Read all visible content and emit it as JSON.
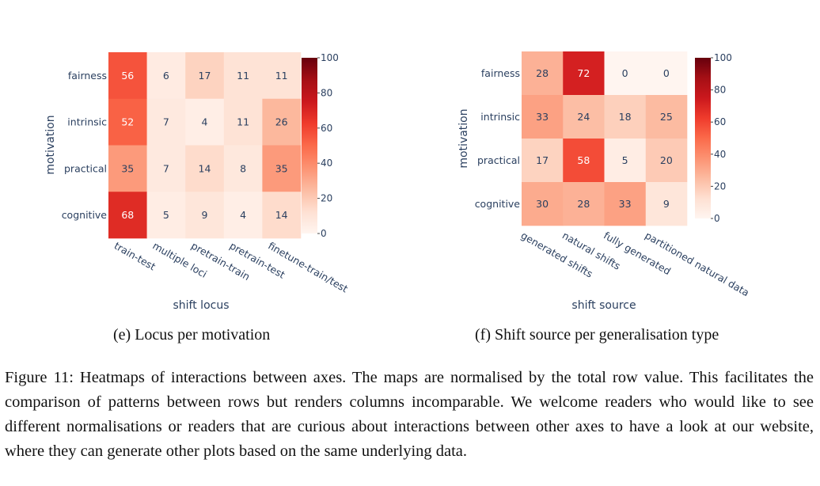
{
  "chart_data": [
    {
      "type": "heatmap",
      "title": "",
      "xlabel": "shift locus",
      "ylabel": "motivation",
      "x": [
        "train-test",
        "multiple loci",
        "pretrain-train",
        "pretrain-test",
        "finetune-train/test"
      ],
      "y": [
        "fairness",
        "intrinsic",
        "practical",
        "cognitive"
      ],
      "values": [
        [
          56,
          6,
          17,
          11,
          11
        ],
        [
          52,
          7,
          4,
          11,
          26
        ],
        [
          35,
          7,
          14,
          8,
          35
        ],
        [
          68,
          5,
          9,
          4,
          14
        ]
      ],
      "colorscale": "Reds",
      "zlim": [
        0,
        100
      ],
      "colorbar_ticks": [
        "0",
        "20",
        "40",
        "60",
        "80",
        "100"
      ]
    },
    {
      "type": "heatmap",
      "title": "",
      "xlabel": "shift source",
      "ylabel": "motivation",
      "x": [
        "generated shifts",
        "natural shifts",
        "fully generated",
        "partitioned natural data"
      ],
      "y": [
        "fairness",
        "intrinsic",
        "practical",
        "cognitive"
      ],
      "values": [
        [
          28,
          72,
          0,
          0
        ],
        [
          33,
          24,
          18,
          25
        ],
        [
          17,
          58,
          5,
          20
        ],
        [
          30,
          28,
          33,
          9
        ]
      ],
      "colorscale": "Reds",
      "zlim": [
        0,
        100
      ],
      "colorbar_ticks": [
        "0",
        "20",
        "40",
        "60",
        "80",
        "100"
      ]
    }
  ],
  "captions": {
    "left": "(e) Locus per motivation",
    "right": "(f) Shift source per generalisation type",
    "figure": "Figure 11: Heatmaps of interactions between axes. The maps are normalised by the total row value. This facilitates the comparison of patterns between rows but renders columns incomparable. We welcome readers who would like to see different normalisations or readers that are curious about interactions between other axes to have a look at our website, where they can generate other plots based on the same underlying data."
  }
}
